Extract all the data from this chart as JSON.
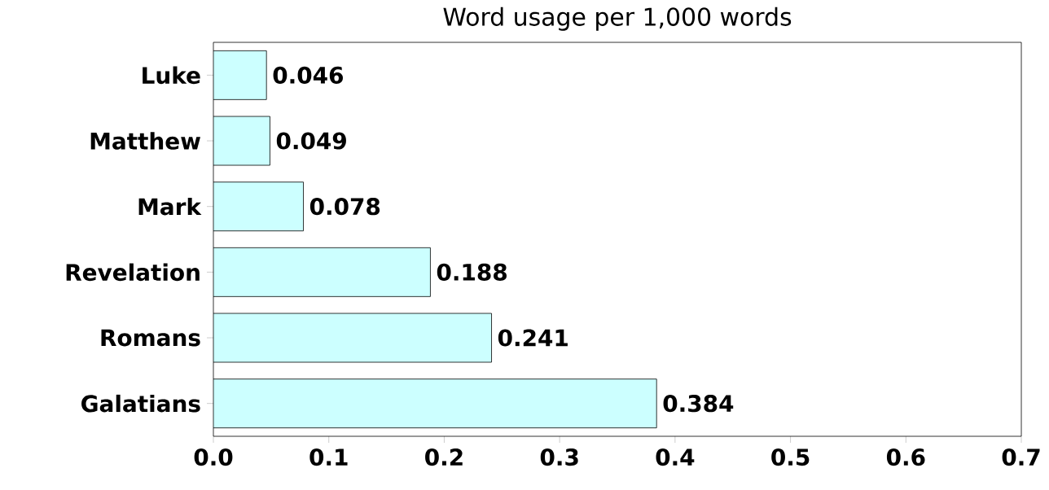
{
  "chart_data": {
    "type": "bar",
    "orientation": "horizontal",
    "title": "Word usage per 1,000 words",
    "categories": [
      "Luke",
      "Matthew",
      "Mark",
      "Revelation",
      "Romans",
      "Galatians"
    ],
    "values": [
      0.046,
      0.049,
      0.078,
      0.188,
      0.241,
      0.384
    ],
    "color": "#ccffff",
    "xlim": [
      0,
      0.7
    ],
    "xticks": [
      {
        "value": 0,
        "label": "0.0"
      },
      0.1,
      0.2,
      0.3,
      0.4,
      0.5,
      0.6,
      0.7
    ],
    "data_labels": true
  }
}
